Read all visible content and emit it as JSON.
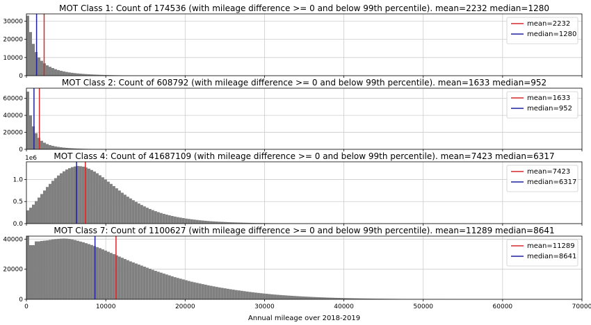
{
  "figure": {
    "xlabel": "Annual mileage over 2018-2019"
  },
  "colors": {
    "bar": "#808080",
    "mean": "#d62728",
    "median": "#1f1f9f",
    "grid": "#cccccc"
  },
  "chart_data": [
    {
      "type": "bar",
      "title": "MOT Class 1: Count of 174536 (with mileage difference >= 0 and below 99th percentile). mean=2232 median=1280",
      "bin_width": 350,
      "xlim": [
        0,
        70000
      ],
      "ylim": [
        0,
        34000
      ],
      "ytick_values": [
        0,
        10000,
        20000,
        30000
      ],
      "ytick_labels": [
        "0",
        "10000",
        "20000",
        "30000"
      ],
      "offset_label": "",
      "legend": {
        "position": "top-right",
        "entries": [
          "mean=2232",
          "median=1280"
        ]
      },
      "mean": 2232,
      "median": 1280,
      "values": [
        33000,
        24000,
        17500,
        13000,
        10000,
        8200,
        6800,
        5700,
        4900,
        4200,
        3600,
        3100,
        2700,
        2350,
        2050,
        1800,
        1580,
        1400,
        1240,
        1100,
        980,
        870,
        780,
        690,
        620,
        550,
        490,
        440,
        390,
        350,
        310,
        275,
        245,
        220,
        195,
        170,
        150,
        130,
        115,
        100,
        90,
        80,
        70,
        60,
        50,
        40,
        30,
        20
      ]
    },
    {
      "type": "bar",
      "title": "MOT Class 2: Count of 608792 (with mileage difference >= 0 and below 99th percentile). mean=1633 median=952",
      "bin_width": 350,
      "xlim": [
        0,
        70000
      ],
      "ylim": [
        0,
        72000
      ],
      "ytick_values": [
        0,
        20000,
        40000,
        60000
      ],
      "ytick_labels": [
        "0",
        "20000",
        "40000",
        "60000"
      ],
      "offset_label": "",
      "legend": {
        "position": "top-right",
        "entries": [
          "mean=1633",
          "median=952"
        ]
      },
      "mean": 1633,
      "median": 952,
      "values": [
        68000,
        40000,
        27000,
        19000,
        13500,
        10000,
        7800,
        6200,
        5000,
        4100,
        3400,
        2850,
        2400,
        2000,
        1700,
        1450,
        1250,
        1060,
        900,
        770,
        660,
        560,
        480,
        410,
        350,
        300,
        255,
        215,
        180,
        150,
        120,
        95,
        75,
        55,
        40,
        25
      ]
    },
    {
      "type": "bar",
      "title": "MOT Class 4: Count of 41687109 (with mileage difference >= 0 and below 99th percentile). mean=7423 median=6317",
      "bin_width": 350,
      "xlim": [
        0,
        70000
      ],
      "ylim": [
        0,
        1400000
      ],
      "ytick_values": [
        0,
        500000,
        1000000
      ],
      "ytick_labels": [
        "0.0",
        "0.5",
        "1.0"
      ],
      "offset_label": "1e6",
      "legend": {
        "position": "top-right",
        "entries": [
          "mean=7423",
          "median=6317"
        ]
      },
      "mean": 7423,
      "median": 6317,
      "values": [
        300000,
        360000,
        430000,
        510000,
        590000,
        670000,
        750000,
        830000,
        900000,
        970000,
        1030000,
        1090000,
        1140000,
        1185000,
        1225000,
        1255000,
        1280000,
        1295000,
        1305000,
        1300000,
        1290000,
        1270000,
        1245000,
        1215000,
        1180000,
        1140000,
        1095000,
        1050000,
        1000000,
        950000,
        900000,
        850000,
        800000,
        750000,
        700000,
        655000,
        610000,
        570000,
        530000,
        492000,
        456000,
        422000,
        390000,
        360000,
        332000,
        306000,
        282000,
        260000,
        240000,
        221000,
        204000,
        188000,
        173000,
        160000,
        147000,
        136000,
        125000,
        115000,
        106000,
        98000,
        90000,
        83000,
        76000,
        70000,
        64000,
        59000,
        54000,
        50000,
        46000,
        42000,
        39000,
        36000,
        33000,
        30000,
        28000,
        26000,
        24000,
        22000,
        20000,
        18500,
        17000,
        15500,
        14000,
        13000,
        12000,
        11000,
        10000,
        9000,
        8200,
        7500,
        6800,
        6200,
        5600,
        5000,
        4500,
        4000,
        3500,
        3000,
        2500,
        2000
      ]
    },
    {
      "type": "bar",
      "title": "MOT Class 7: Count of 1100627 (with mileage difference >= 0 and below 99th percentile). mean=11289 median=8641",
      "bin_width": 350,
      "xlim": [
        0,
        70000
      ],
      "ylim": [
        0,
        42000
      ],
      "ytick_values": [
        0,
        20000,
        40000
      ],
      "ytick_labels": [
        "0",
        "20000",
        "40000"
      ],
      "offset_label": "",
      "legend": {
        "position": "top-right",
        "entries": [
          "mean=11289",
          "median=8641"
        ]
      },
      "mean": 11289,
      "median": 8641,
      "values": [
        42000,
        36000,
        36000,
        38500,
        38500,
        38800,
        39000,
        39200,
        39500,
        39800,
        40000,
        40200,
        40300,
        40400,
        40300,
        40100,
        39800,
        39400,
        38900,
        38400,
        37900,
        37300,
        36700,
        36100,
        35400,
        34700,
        34000,
        33200,
        32400,
        31600,
        30800,
        30000,
        29200,
        28400,
        27600,
        26800,
        26000,
        25200,
        24500,
        23800,
        23100,
        22400,
        21700,
        21000,
        20300,
        19600,
        18900,
        18300,
        17700,
        17100,
        16500,
        15900,
        15300,
        14700,
        14200,
        13700,
        13200,
        12700,
        12200,
        11700,
        11300,
        10900,
        10500,
        10100,
        9700,
        9300,
        8950,
        8600,
        8250,
        7900,
        7600,
        7300,
        7000,
        6700,
        6400,
        6150,
        5900,
        5650,
        5400,
        5150,
        4900,
        4680,
        4460,
        4250,
        4050,
        3850,
        3660,
        3480,
        3310,
        3150,
        3000,
        2850,
        2710,
        2580,
        2450,
        2330,
        2210,
        2100,
        1990,
        1890,
        1790,
        1700,
        1610,
        1530,
        1450,
        1370,
        1300,
        1230,
        1160,
        1100,
        1040,
        980,
        930,
        880,
        830,
        780,
        740,
        700,
        660,
        620,
        580,
        550,
        520,
        490,
        460,
        430,
        410,
        390,
        370,
        350,
        330,
        310,
        290,
        270,
        250,
        235,
        220,
        205,
        190,
        175,
        160,
        150,
        140,
        130,
        120,
        110,
        100,
        90,
        80,
        70,
        60,
        50,
        40,
        30,
        20
      ]
    }
  ],
  "xaxis": {
    "tick_values": [
      0,
      10000,
      20000,
      30000,
      40000,
      50000,
      60000,
      70000
    ],
    "tick_labels": [
      "0",
      "10000",
      "20000",
      "30000",
      "40000",
      "50000",
      "60000",
      "70000"
    ]
  }
}
